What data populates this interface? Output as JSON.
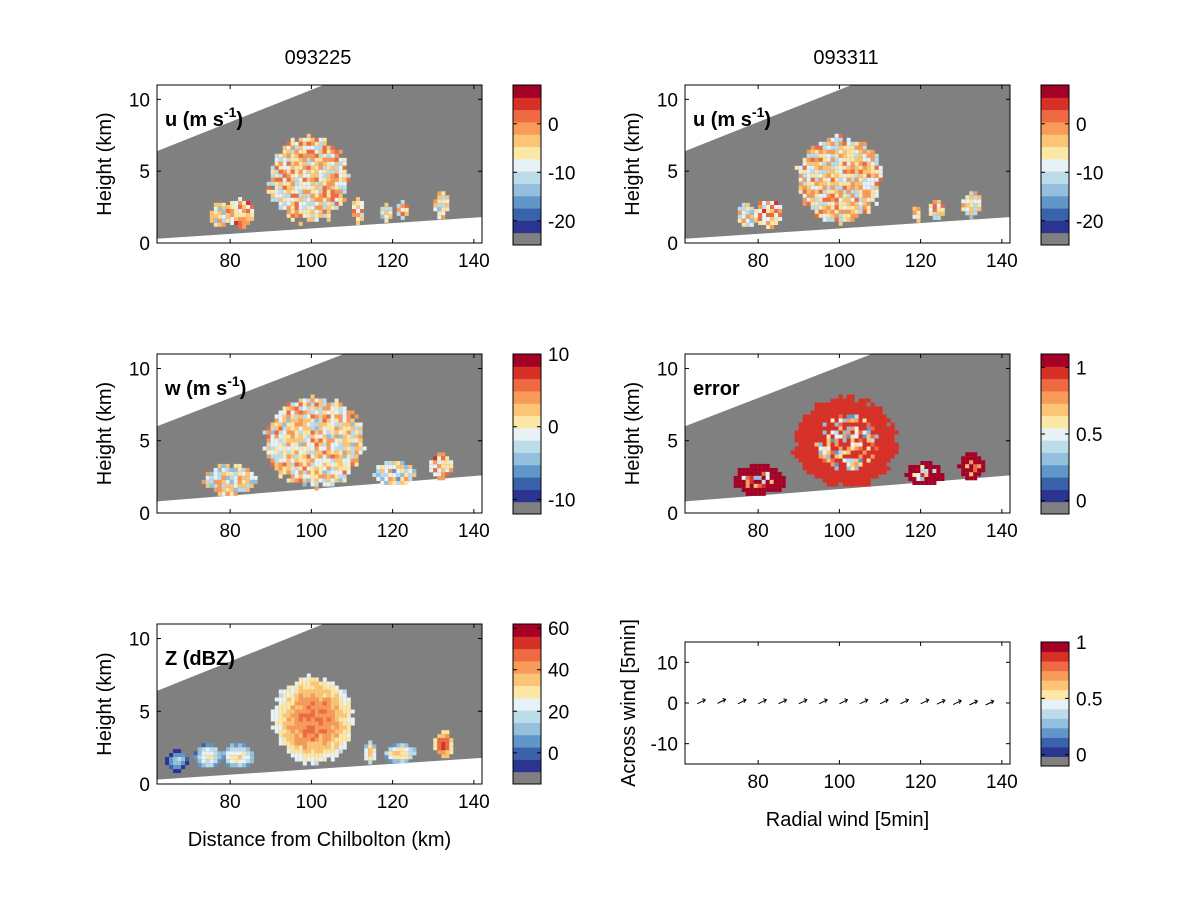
{
  "figure": {
    "column_titles": [
      "093225",
      "093311"
    ],
    "xlabel_bottom_left": "Distance from Chilbolton (km)",
    "xlabel_bottom_right": "Radial wind [5min]"
  },
  "colors": {
    "mask": "#808080",
    "palette": [
      "#2b3591",
      "#3a62aa",
      "#6096c8",
      "#94c0dd",
      "#bcdcea",
      "#e6f2f6",
      "#fde7a6",
      "#fcc576",
      "#f79a5a",
      "#ef6a42",
      "#d73027",
      "#a50026"
    ]
  },
  "chart_data": [
    {
      "type": "heatmap",
      "id": "u_093225",
      "title": "093225",
      "label": "u (m s",
      "label_sup": "-1",
      "label_end": ")",
      "xlabel": "",
      "ylabel": "Height (km)",
      "xlim": [
        62,
        142
      ],
      "ylim": [
        0,
        11
      ],
      "xticks": [
        80,
        100,
        120,
        140
      ],
      "yticks": [
        0,
        5,
        10
      ],
      "colorbar": {
        "range": [
          -25,
          8
        ],
        "ticks": [
          0,
          -10,
          -20
        ]
      },
      "beam": {
        "top": [
          [
            62,
            6.4
          ],
          [
            103,
            11
          ]
        ],
        "bottom": [
          [
            62,
            0.3
          ],
          [
            142,
            1.8
          ]
        ]
      },
      "echoes": [
        {
          "x": [
            75,
            80
          ],
          "y": [
            1.0,
            2.8
          ],
          "mean": -8
        },
        {
          "x": [
            79,
            86
          ],
          "y": [
            1.0,
            3.2
          ],
          "mean": -4
        },
        {
          "x": [
            89,
            110
          ],
          "y": [
            1.2,
            7.6
          ],
          "mean": -6
        },
        {
          "x": [
            110,
            113
          ],
          "y": [
            1.3,
            3.2
          ],
          "mean": -5
        },
        {
          "x": [
            117,
            120
          ],
          "y": [
            1.4,
            2.8
          ],
          "mean": -8
        },
        {
          "x": [
            121,
            124
          ],
          "y": [
            1.5,
            3.0
          ],
          "mean": -6
        },
        {
          "x": [
            130,
            134
          ],
          "y": [
            1.7,
            3.6
          ],
          "mean": -9
        }
      ]
    },
    {
      "type": "heatmap",
      "id": "u_093311",
      "title": "093311",
      "label": "u (m s",
      "label_sup": "-1",
      "label_end": ")",
      "xlabel": "",
      "ylabel": "Height (km)",
      "xlim": [
        62,
        142
      ],
      "ylim": [
        0,
        11
      ],
      "xticks": [
        80,
        100,
        120,
        140
      ],
      "yticks": [
        0,
        5,
        10
      ],
      "colorbar": {
        "range": [
          -25,
          8
        ],
        "ticks": [
          0,
          -10,
          -20
        ]
      },
      "beam": {
        "top": [
          [
            62,
            6.4
          ],
          [
            103,
            11
          ]
        ],
        "bottom": [
          [
            62,
            0.3
          ],
          [
            142,
            1.8
          ]
        ]
      },
      "echoes": [
        {
          "x": [
            75,
            80
          ],
          "y": [
            1.0,
            2.8
          ],
          "mean": -8
        },
        {
          "x": [
            79,
            86
          ],
          "y": [
            1.0,
            3.2
          ],
          "mean": -4
        },
        {
          "x": [
            89,
            111
          ],
          "y": [
            1.2,
            7.6
          ],
          "mean": -6
        },
        {
          "x": [
            118,
            120
          ],
          "y": [
            1.4,
            2.8
          ],
          "mean": -8
        },
        {
          "x": [
            122,
            126
          ],
          "y": [
            1.5,
            3.0
          ],
          "mean": -6
        },
        {
          "x": [
            130,
            135
          ],
          "y": [
            1.7,
            3.6
          ],
          "mean": -9
        }
      ]
    },
    {
      "type": "heatmap",
      "id": "w",
      "title": "",
      "label": "w (m s",
      "label_sup": "-1",
      "label_end": ")",
      "xlabel": "",
      "ylabel": "Height (km)",
      "xlim": [
        62,
        142
      ],
      "ylim": [
        0,
        11
      ],
      "xticks": [
        80,
        100,
        120,
        140
      ],
      "yticks": [
        0,
        5,
        10
      ],
      "colorbar": {
        "range": [
          -12,
          10
        ],
        "ticks": [
          10,
          0,
          -10
        ]
      },
      "beam": {
        "top": [
          [
            62,
            6.0
          ],
          [
            108,
            11
          ]
        ],
        "bottom": [
          [
            62,
            0.8
          ],
          [
            142,
            2.6
          ]
        ]
      },
      "echoes": [
        {
          "x": [
            73,
            87
          ],
          "y": [
            1.2,
            3.4
          ],
          "mean": -1
        },
        {
          "x": [
            88,
            114
          ],
          "y": [
            1.6,
            8.2
          ],
          "mean": 0
        },
        {
          "x": [
            115,
            126
          ],
          "y": [
            1.8,
            3.6
          ],
          "mean": -2
        },
        {
          "x": [
            129,
            135
          ],
          "y": [
            2.2,
            4.2
          ],
          "mean": 2
        }
      ]
    },
    {
      "type": "heatmap",
      "id": "error",
      "title": "",
      "label": "error",
      "label_sup": "",
      "label_end": "",
      "xlabel": "",
      "ylabel": "Height (km)",
      "xlim": [
        62,
        142
      ],
      "ylim": [
        0,
        11
      ],
      "xticks": [
        80,
        100,
        120,
        140
      ],
      "yticks": [
        0,
        5,
        10
      ],
      "colorbar": {
        "range": [
          -0.1,
          1.1
        ],
        "ticks": [
          1,
          0.5,
          0
        ]
      },
      "beam": {
        "top": [
          [
            62,
            6.0
          ],
          [
            108,
            11
          ]
        ],
        "bottom": [
          [
            62,
            0.8
          ],
          [
            142,
            2.6
          ]
        ]
      },
      "echoes": [
        {
          "x": [
            73,
            87
          ],
          "y": [
            1.2,
            3.4
          ],
          "mean": 1.0
        },
        {
          "x": [
            88,
            115
          ],
          "y": [
            1.6,
            8.2
          ],
          "mean": 0.9
        },
        {
          "x": [
            116,
            126
          ],
          "y": [
            1.8,
            3.6
          ],
          "mean": 1.0
        },
        {
          "x": [
            129,
            136
          ],
          "y": [
            2.2,
            4.2
          ],
          "mean": 1.0
        }
      ]
    },
    {
      "type": "heatmap",
      "id": "Z",
      "title": "",
      "label": "Z (dBZ)",
      "label_sup": "",
      "label_end": "",
      "xlabel": "Distance from Chilbolton (km)",
      "ylabel": "Height (km)",
      "xlim": [
        62,
        142
      ],
      "ylim": [
        0,
        11
      ],
      "xticks": [
        80,
        100,
        120,
        140
      ],
      "yticks": [
        0,
        5,
        10
      ],
      "colorbar": {
        "range": [
          -15,
          62
        ],
        "ticks": [
          60,
          40,
          20,
          0
        ]
      },
      "beam": {
        "top": [
          [
            62,
            6.4
          ],
          [
            103,
            11
          ]
        ],
        "bottom": [
          [
            62,
            0.3
          ],
          [
            142,
            1.8
          ]
        ]
      },
      "echoes": [
        {
          "x": [
            64,
            70
          ],
          "y": [
            0.8,
            2.4
          ],
          "mean": -10
        },
        {
          "x": [
            71,
            78
          ],
          "y": [
            1.0,
            2.8
          ],
          "mean": 5
        },
        {
          "x": [
            78,
            86
          ],
          "y": [
            1.0,
            2.8
          ],
          "mean": 8
        },
        {
          "x": [
            90,
            111
          ],
          "y": [
            1.2,
            7.6
          ],
          "mean": 25
        },
        {
          "x": [
            113,
            116
          ],
          "y": [
            1.3,
            3.0
          ],
          "mean": 15
        },
        {
          "x": [
            118,
            126
          ],
          "y": [
            1.4,
            2.8
          ],
          "mean": 12
        },
        {
          "x": [
            130,
            135
          ],
          "y": [
            1.7,
            3.7
          ],
          "mean": 30
        }
      ]
    },
    {
      "type": "scatter",
      "id": "wind",
      "title": "",
      "label": "",
      "xlabel": "Radial wind [5min]",
      "ylabel": "Across wind [5min]",
      "xlim": [
        62,
        142
      ],
      "ylim": [
        -15,
        15
      ],
      "xticks": [
        80,
        100,
        120,
        140
      ],
      "yticks": [
        -10,
        0,
        10
      ],
      "colorbar": {
        "range": [
          -0.1,
          1.0
        ],
        "ticks": [
          1,
          0.5,
          0
        ]
      },
      "arrows": {
        "x": [
          66,
          71,
          76,
          81,
          86,
          91,
          96,
          101,
          106,
          111,
          116,
          121,
          125,
          129,
          133,
          137
        ],
        "y": [
          0.3,
          0.4,
          0.3,
          0.3,
          0.3,
          0.3,
          0.3,
          0.3,
          0.3,
          0.3,
          0.3,
          0.3,
          0.2,
          0.1,
          0.0,
          0.0
        ]
      }
    }
  ]
}
